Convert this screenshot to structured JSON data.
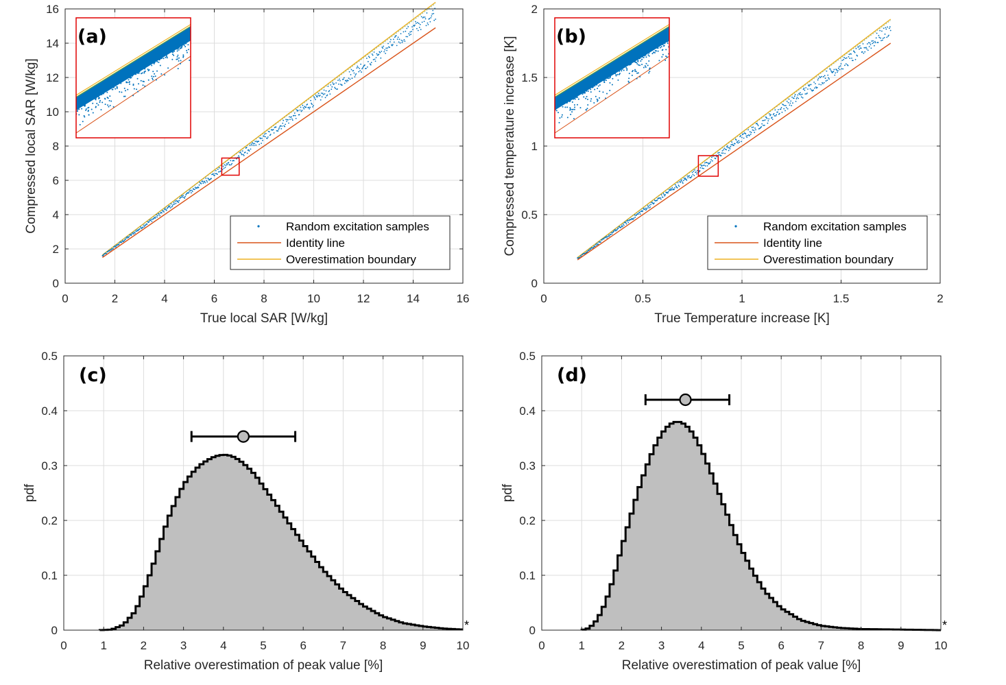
{
  "colors": {
    "samples": "#0072BD",
    "identity": "#D95319",
    "boundary": "#EDB120",
    "histogram_fill": "#BFBFBF",
    "histogram_edge": "#000000",
    "inset_box": "#E00000",
    "marker_fill": "#BDBDBD"
  },
  "legend": {
    "samples": "Random excitation samples",
    "identity": "Identity line",
    "boundary": "Overestimation boundary"
  },
  "chart_data": [
    {
      "id": "a",
      "panel_label": "(a)",
      "type": "scatter",
      "xlabel": "True local SAR [W/kg]",
      "ylabel": "Compressed local SAR [W/kg]",
      "xlim": [
        0,
        16
      ],
      "ylim": [
        0,
        16
      ],
      "xticks": [
        0,
        2,
        4,
        6,
        8,
        10,
        12,
        14,
        16
      ],
      "yticks": [
        0,
        2,
        4,
        6,
        8,
        10,
        12,
        14,
        16
      ],
      "xtick_labels": [
        "0",
        "2",
        "4",
        "6",
        "8",
        "10",
        "12",
        "14",
        "16"
      ],
      "ytick_labels": [
        "0",
        "2",
        "4",
        "6",
        "8",
        "10",
        "12",
        "14",
        "16"
      ],
      "data_range": [
        1.5,
        14.9
      ],
      "sample_overestimation_percent": [
        1,
        10
      ],
      "boundary_factor": 1.1,
      "zoom_region": {
        "x": [
          6.3,
          7.0
        ],
        "y": [
          6.3,
          7.3
        ]
      },
      "legend_position": "bottom-right"
    },
    {
      "id": "b",
      "panel_label": "(b)",
      "type": "scatter",
      "xlabel": "True Temperature increase [K]",
      "ylabel": "Compressed temperature increase [K]",
      "xlim": [
        0,
        2
      ],
      "ylim": [
        0,
        2
      ],
      "xticks": [
        0,
        0.5,
        1,
        1.5,
        2
      ],
      "yticks": [
        0,
        0.5,
        1,
        1.5,
        2
      ],
      "xtick_labels": [
        "0",
        "0.5",
        "1",
        "1.5",
        "2"
      ],
      "ytick_labels": [
        "0",
        "0.5",
        "1",
        "1.5",
        "2"
      ],
      "data_range": [
        0.17,
        1.75
      ],
      "sample_overestimation_percent": [
        1,
        10
      ],
      "boundary_factor": 1.1,
      "zoom_region": {
        "x": [
          0.78,
          0.88
        ],
        "y": [
          0.78,
          0.93
        ]
      },
      "legend_position": "bottom-right"
    },
    {
      "id": "c",
      "panel_label": "(c)",
      "type": "histogram",
      "xlabel": "Relative overestimation of peak value [%]",
      "ylabel": "pdf",
      "xlim": [
        0,
        10
      ],
      "ylim": [
        0,
        0.5
      ],
      "xticks": [
        0,
        1,
        2,
        3,
        4,
        5,
        6,
        7,
        8,
        9,
        10
      ],
      "yticks": [
        0,
        0.1,
        0.2,
        0.3,
        0.4,
        0.5
      ],
      "xtick_labels": [
        "0",
        "1",
        "2",
        "3",
        "4",
        "5",
        "6",
        "7",
        "8",
        "9",
        "10"
      ],
      "ytick_labels": [
        "0",
        "0.1",
        "0.2",
        "0.3",
        "0.4",
        "0.5"
      ],
      "bin_width": 0.1,
      "curve_points": [
        [
          0.9,
          0
        ],
        [
          1.2,
          0.001
        ],
        [
          1.5,
          0.01
        ],
        [
          1.8,
          0.035
        ],
        [
          2.0,
          0.07
        ],
        [
          2.2,
          0.11
        ],
        [
          2.4,
          0.155
        ],
        [
          2.6,
          0.2
        ],
        [
          2.8,
          0.235
        ],
        [
          3.0,
          0.265
        ],
        [
          3.2,
          0.285
        ],
        [
          3.4,
          0.3
        ],
        [
          3.6,
          0.31
        ],
        [
          3.8,
          0.317
        ],
        [
          4.0,
          0.32
        ],
        [
          4.2,
          0.318
        ],
        [
          4.4,
          0.31
        ],
        [
          4.6,
          0.298
        ],
        [
          4.8,
          0.283
        ],
        [
          5.0,
          0.262
        ],
        [
          5.3,
          0.232
        ],
        [
          5.6,
          0.2
        ],
        [
          6.0,
          0.158
        ],
        [
          6.5,
          0.11
        ],
        [
          7.0,
          0.072
        ],
        [
          7.5,
          0.045
        ],
        [
          8.0,
          0.025
        ],
        [
          8.5,
          0.013
        ],
        [
          9.0,
          0.007
        ],
        [
          9.5,
          0.003
        ],
        [
          10.0,
          0.001
        ]
      ],
      "errorbar": {
        "center": 4.5,
        "low": 3.2,
        "high": 5.8,
        "y": 0.353
      },
      "asterisk": "*"
    },
    {
      "id": "d",
      "panel_label": "(d)",
      "type": "histogram",
      "xlabel": "Relative overestimation of peak value [%]",
      "ylabel": "pdf",
      "xlim": [
        0,
        10
      ],
      "ylim": [
        0,
        0.5
      ],
      "xticks": [
        0,
        1,
        2,
        3,
        4,
        5,
        6,
        7,
        8,
        9,
        10
      ],
      "yticks": [
        0,
        0.1,
        0.2,
        0.3,
        0.4,
        0.5
      ],
      "xtick_labels": [
        "0",
        "1",
        "2",
        "3",
        "4",
        "5",
        "6",
        "7",
        "8",
        "9",
        "10"
      ],
      "ytick_labels": [
        "0",
        "0.1",
        "0.2",
        "0.3",
        "0.4",
        "0.5"
      ],
      "bin_width": 0.1,
      "curve_points": [
        [
          1.0,
          0
        ],
        [
          1.2,
          0.004
        ],
        [
          1.4,
          0.02
        ],
        [
          1.6,
          0.05
        ],
        [
          1.8,
          0.095
        ],
        [
          2.0,
          0.15
        ],
        [
          2.2,
          0.2
        ],
        [
          2.4,
          0.25
        ],
        [
          2.6,
          0.293
        ],
        [
          2.8,
          0.33
        ],
        [
          3.0,
          0.358
        ],
        [
          3.2,
          0.375
        ],
        [
          3.4,
          0.381
        ],
        [
          3.6,
          0.375
        ],
        [
          3.8,
          0.358
        ],
        [
          4.0,
          0.33
        ],
        [
          4.2,
          0.295
        ],
        [
          4.4,
          0.258
        ],
        [
          4.6,
          0.22
        ],
        [
          4.8,
          0.182
        ],
        [
          5.0,
          0.148
        ],
        [
          5.3,
          0.105
        ],
        [
          5.6,
          0.07
        ],
        [
          6.0,
          0.04
        ],
        [
          6.5,
          0.018
        ],
        [
          7.0,
          0.008
        ],
        [
          7.5,
          0.004
        ],
        [
          8.0,
          0.002
        ],
        [
          9.0,
          0.001
        ],
        [
          10.0,
          0.0
        ]
      ],
      "errorbar": {
        "center": 3.6,
        "low": 2.6,
        "high": 4.7,
        "y": 0.42
      },
      "asterisk": "*"
    }
  ]
}
